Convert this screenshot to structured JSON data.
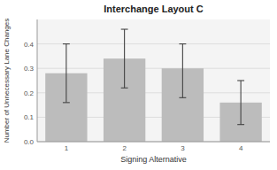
{
  "chart_data": {
    "type": "bar",
    "title": "Interchange Layout C",
    "x_label": "Signing Alternative",
    "y_label": "Number of Unnecessary Lane Changes",
    "categories": [
      "1",
      "2",
      "3",
      "4"
    ],
    "values": [
      0.28,
      0.34,
      0.3,
      0.16
    ],
    "ci_lower": [
      0.16,
      0.22,
      0.18,
      0.07
    ],
    "ci_upper": [
      0.4,
      0.46,
      0.4,
      0.25
    ],
    "color": "#BCBCBC",
    "ylim": [
      0.0,
      0.5
    ],
    "yticks": [
      {
        "value": 0.0,
        "label": "0.0"
      },
      0.1,
      0.2,
      0.3,
      0.4
    ],
    "grid": true
  }
}
